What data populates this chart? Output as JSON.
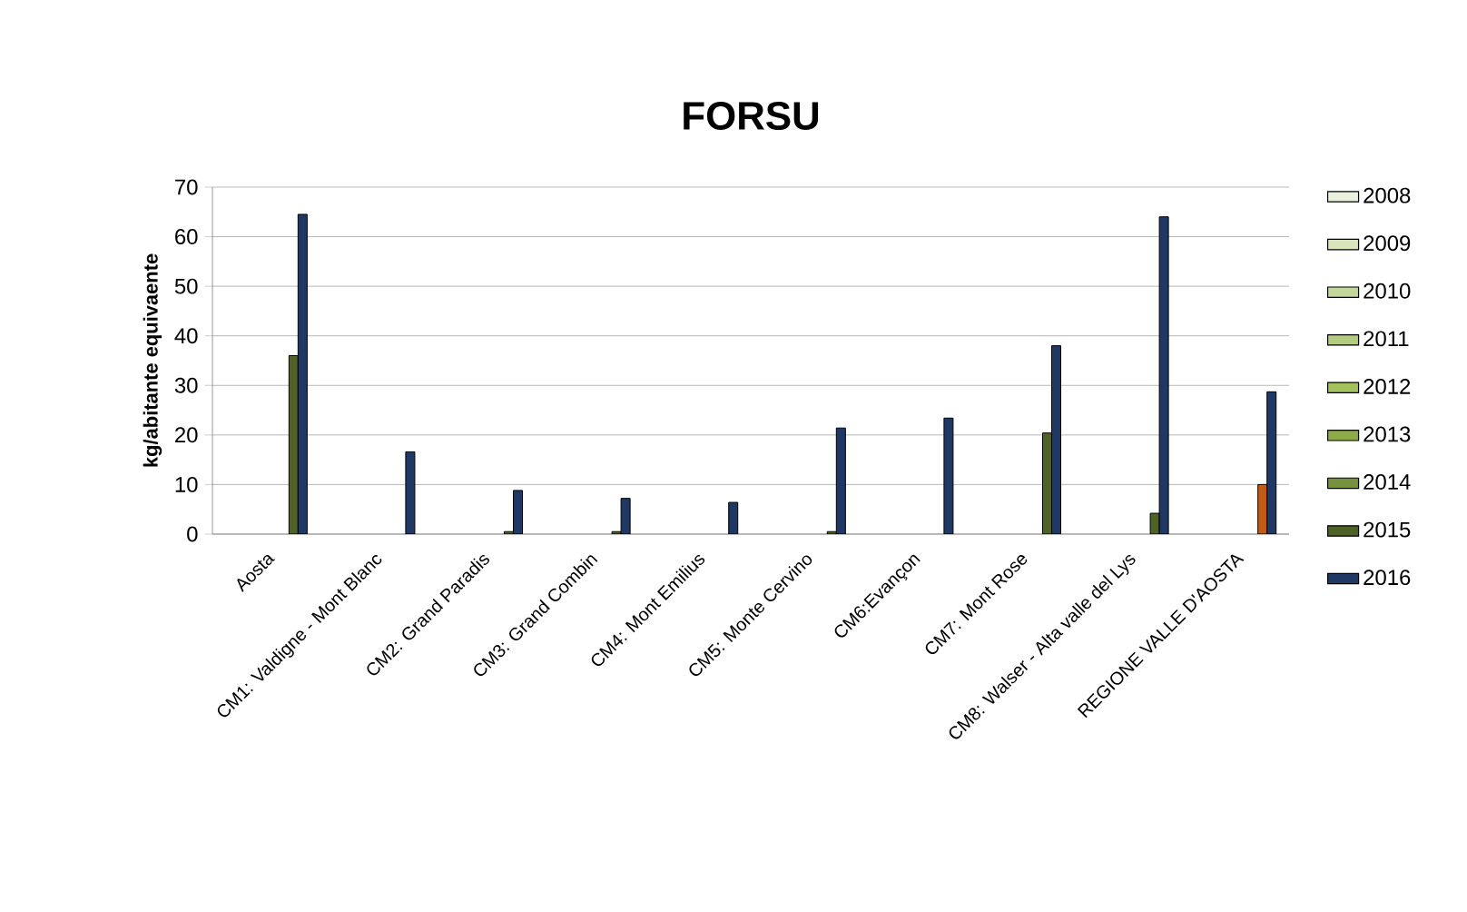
{
  "chart_data": {
    "type": "bar",
    "title": "FORSU",
    "ylabel": "kg/abitante equivaente",
    "categories": [
      "Aosta",
      "CM1: Valdigne - Mont Blanc",
      "CM2: Grand Paradis",
      "CM3: Grand Combin",
      "CM4: Mont Emilius",
      "CM5: Monte Cervino",
      "CM6:Evançon",
      "CM7: Mont Rose",
      "CM8: Walser - Alta valle del Lys",
      "REGIONE VALLE D'AOSTA"
    ],
    "series": [
      {
        "name": "2008",
        "color": "#ebf1de",
        "values": [
          null,
          null,
          null,
          null,
          null,
          null,
          null,
          null,
          null,
          null
        ]
      },
      {
        "name": "2009",
        "color": "#d8e4bc",
        "values": [
          null,
          null,
          null,
          null,
          null,
          null,
          null,
          null,
          null,
          null
        ]
      },
      {
        "name": "2010",
        "color": "#c4d79b",
        "values": [
          null,
          null,
          null,
          null,
          null,
          null,
          null,
          null,
          null,
          null
        ]
      },
      {
        "name": "2011",
        "color": "#b3cc80",
        "values": [
          null,
          null,
          null,
          null,
          null,
          null,
          null,
          null,
          null,
          null
        ]
      },
      {
        "name": "2012",
        "color": "#a2c05e",
        "values": [
          null,
          null,
          null,
          null,
          null,
          null,
          null,
          null,
          null,
          null
        ]
      },
      {
        "name": "2013",
        "color": "#8caa46",
        "values": [
          null,
          null,
          null,
          null,
          null,
          null,
          null,
          null,
          null,
          null
        ]
      },
      {
        "name": "2014",
        "color": "#76923c",
        "values": [
          null,
          null,
          null,
          null,
          null,
          null,
          null,
          null,
          null,
          null
        ]
      },
      {
        "name": "2015",
        "color": "#4f6228",
        "colors": [
          "#4f6228",
          "#4f6228",
          "#4f6228",
          "#4f6228",
          "#4f6228",
          "#4f6228",
          "#4f6228",
          "#4f6228",
          "#4f6228",
          "#c55a11"
        ],
        "values": [
          36,
          null,
          0.5,
          0.5,
          null,
          0.5,
          null,
          20.4,
          4.2,
          10
        ]
      },
      {
        "name": "2016",
        "color": "#1f3864",
        "values": [
          64.5,
          16.6,
          8.8,
          7.2,
          6.4,
          21.4,
          23.4,
          38,
          64,
          28.7
        ]
      }
    ],
    "ylim": [
      0,
      70
    ],
    "yticks": [
      0,
      10,
      20,
      30,
      40,
      50,
      60,
      70
    ],
    "grid": "y",
    "legend": "right"
  }
}
